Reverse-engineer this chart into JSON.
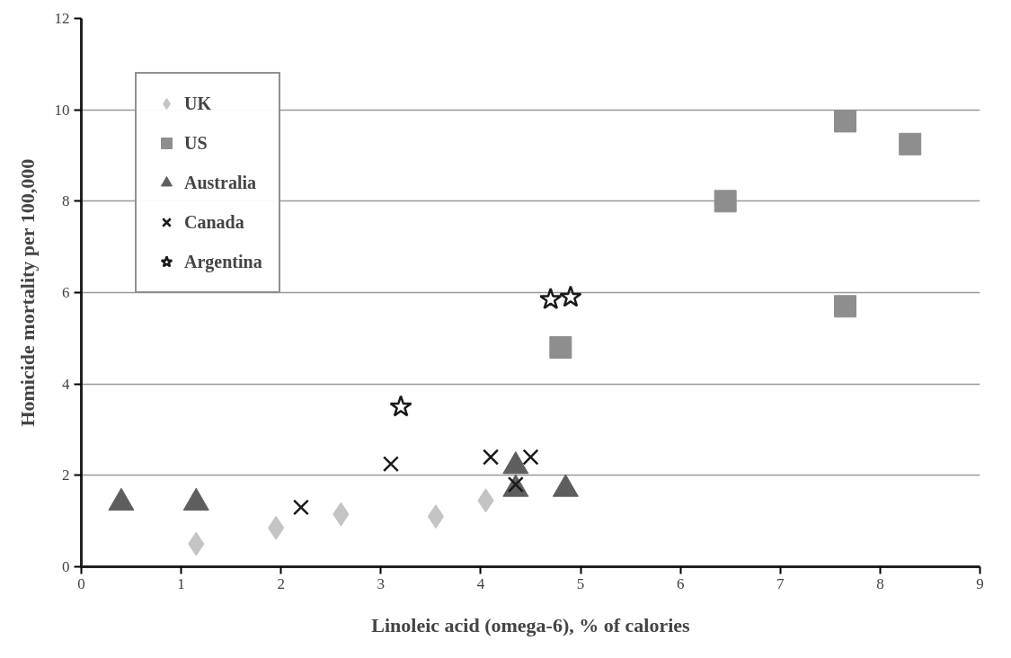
{
  "chart_data": {
    "type": "scatter",
    "xlabel": "Linoleic acid (omega-6), % of calories",
    "ylabel": "Homicide mortality per 100,000",
    "xlim": [
      0,
      9
    ],
    "xticks": [
      0,
      1,
      2,
      3,
      4,
      5,
      6,
      7,
      8,
      9
    ],
    "ylim": [
      0,
      12
    ],
    "yticks": [
      0,
      2,
      4,
      6,
      8,
      10,
      12
    ],
    "grid": "y",
    "legend": "top left",
    "series": [
      {
        "name": "UK",
        "color": "#c4c4c4",
        "marker": "diamond",
        "x": [
          1.15,
          1.95,
          2.6,
          3.55,
          4.05
        ],
        "values": [
          0.5,
          0.85,
          1.15,
          1.1,
          1.45
        ]
      },
      {
        "name": "US",
        "color": "#8e8e8e",
        "marker": "square",
        "x": [
          4.8,
          6.45,
          7.65,
          7.65,
          8.3
        ],
        "values": [
          4.8,
          8.0,
          9.75,
          5.7,
          9.25
        ]
      },
      {
        "name": "Australia",
        "color": "#5e5e5e",
        "marker": "triangle",
        "x": [
          0.4,
          1.15,
          4.35,
          4.35,
          4.85
        ],
        "values": [
          1.4,
          1.4,
          2.2,
          1.7,
          1.7
        ]
      },
      {
        "name": "Canada",
        "color": "#1a1a1a",
        "marker": "cross",
        "x": [
          2.2,
          3.1,
          4.1,
          4.5,
          4.35
        ],
        "values": [
          1.3,
          2.25,
          2.4,
          2.4,
          1.8
        ]
      },
      {
        "name": "Argentina",
        "color": "#1a1a1a",
        "marker": "star",
        "x": [
          3.2,
          4.7,
          4.9
        ],
        "values": [
          3.5,
          5.85,
          5.9
        ]
      }
    ]
  }
}
